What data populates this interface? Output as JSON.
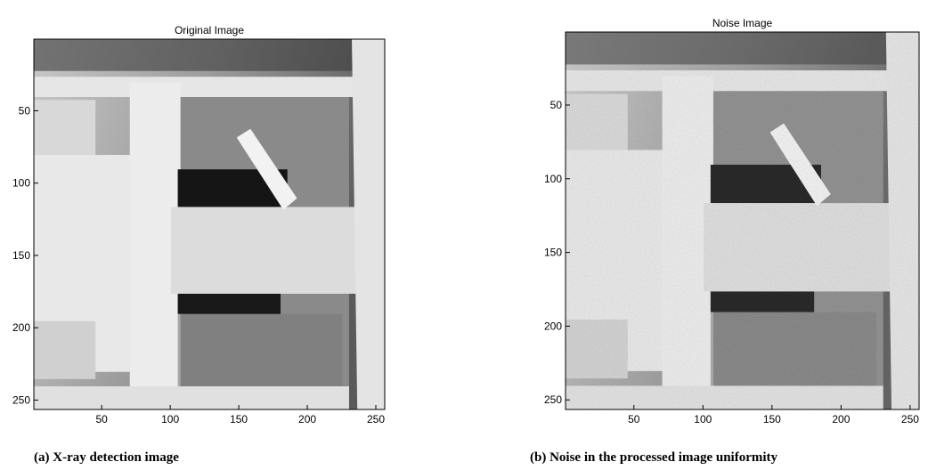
{
  "chart_data": [
    {
      "type": "image",
      "title": "Original Image",
      "caption": "(a) X-ray detection image",
      "xlim": [
        0.5,
        256.5
      ],
      "ylim": [
        0.5,
        256.5
      ],
      "y_reversed": true,
      "xticks": [
        50,
        100,
        150,
        200,
        250
      ],
      "yticks": [
        50,
        100,
        150,
        200,
        250
      ]
    },
    {
      "type": "image",
      "title": "Noise Image",
      "caption": "(b) Noise in the processed image uniformity",
      "xlim": [
        0.5,
        256.5
      ],
      "ylim": [
        0.5,
        256.5
      ],
      "y_reversed": true,
      "xticks": [
        50,
        100,
        150,
        200,
        250
      ],
      "yticks": [
        50,
        100,
        150,
        200,
        250
      ]
    }
  ]
}
